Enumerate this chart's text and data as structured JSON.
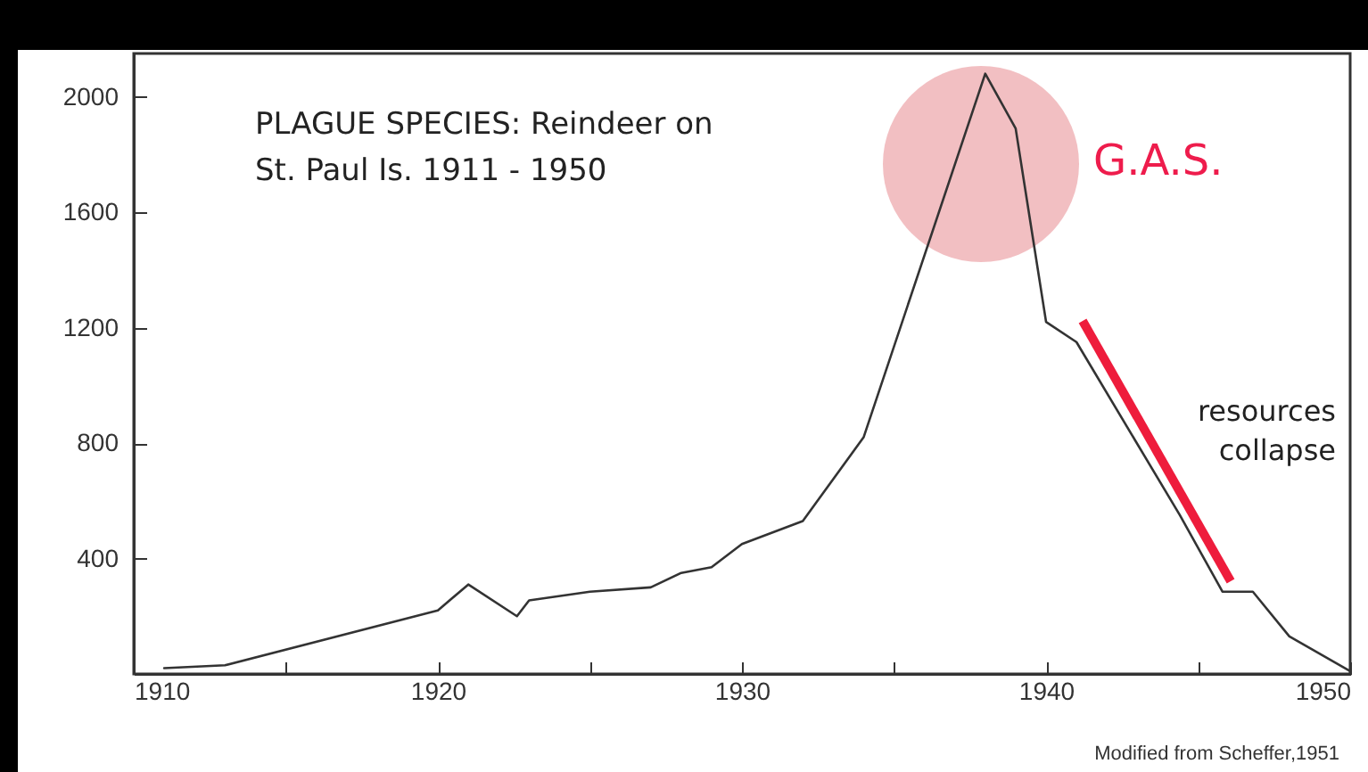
{
  "chart_data": {
    "type": "line",
    "title": "PLAGUE SPECIES:  Reindeer on\nSt. Paul Is.  1911 - 1950",
    "x": [
      1911,
      1913,
      1920,
      1921,
      1922.6,
      1923,
      1925,
      1927,
      1928,
      1929,
      1930,
      1932,
      1934,
      1938,
      1939,
      1940,
      1941,
      1944.4,
      1945.8,
      1946.8,
      1948,
      1950
    ],
    "series": [
      {
        "color": "#333333",
        "values": [
          20,
          30,
          220,
          310,
          200,
          255,
          285,
          300,
          350,
          370,
          450,
          530,
          820,
          2080,
          1890,
          1220,
          1150,
          550,
          285,
          285,
          130,
          10
        ]
      }
    ],
    "xlim": [
      1910,
      1950
    ],
    "xticks": [
      1910,
      {
        "value": 1915,
        "label": null
      },
      1920,
      {
        "value": 1925,
        "label": null
      },
      1930,
      {
        "value": 1935,
        "label": null
      },
      1940,
      {
        "value": 1945,
        "label": null
      },
      1950
    ],
    "ylim": [
      0,
      2150
    ],
    "yticks": [
      400,
      800,
      1200,
      1600,
      2000
    ],
    "annotations": [
      "G.A.S.",
      "resources\ncollapse",
      "Modified from Scheffer,1951"
    ],
    "grid": false,
    "marker": "none",
    "line_style": "solid"
  }
}
